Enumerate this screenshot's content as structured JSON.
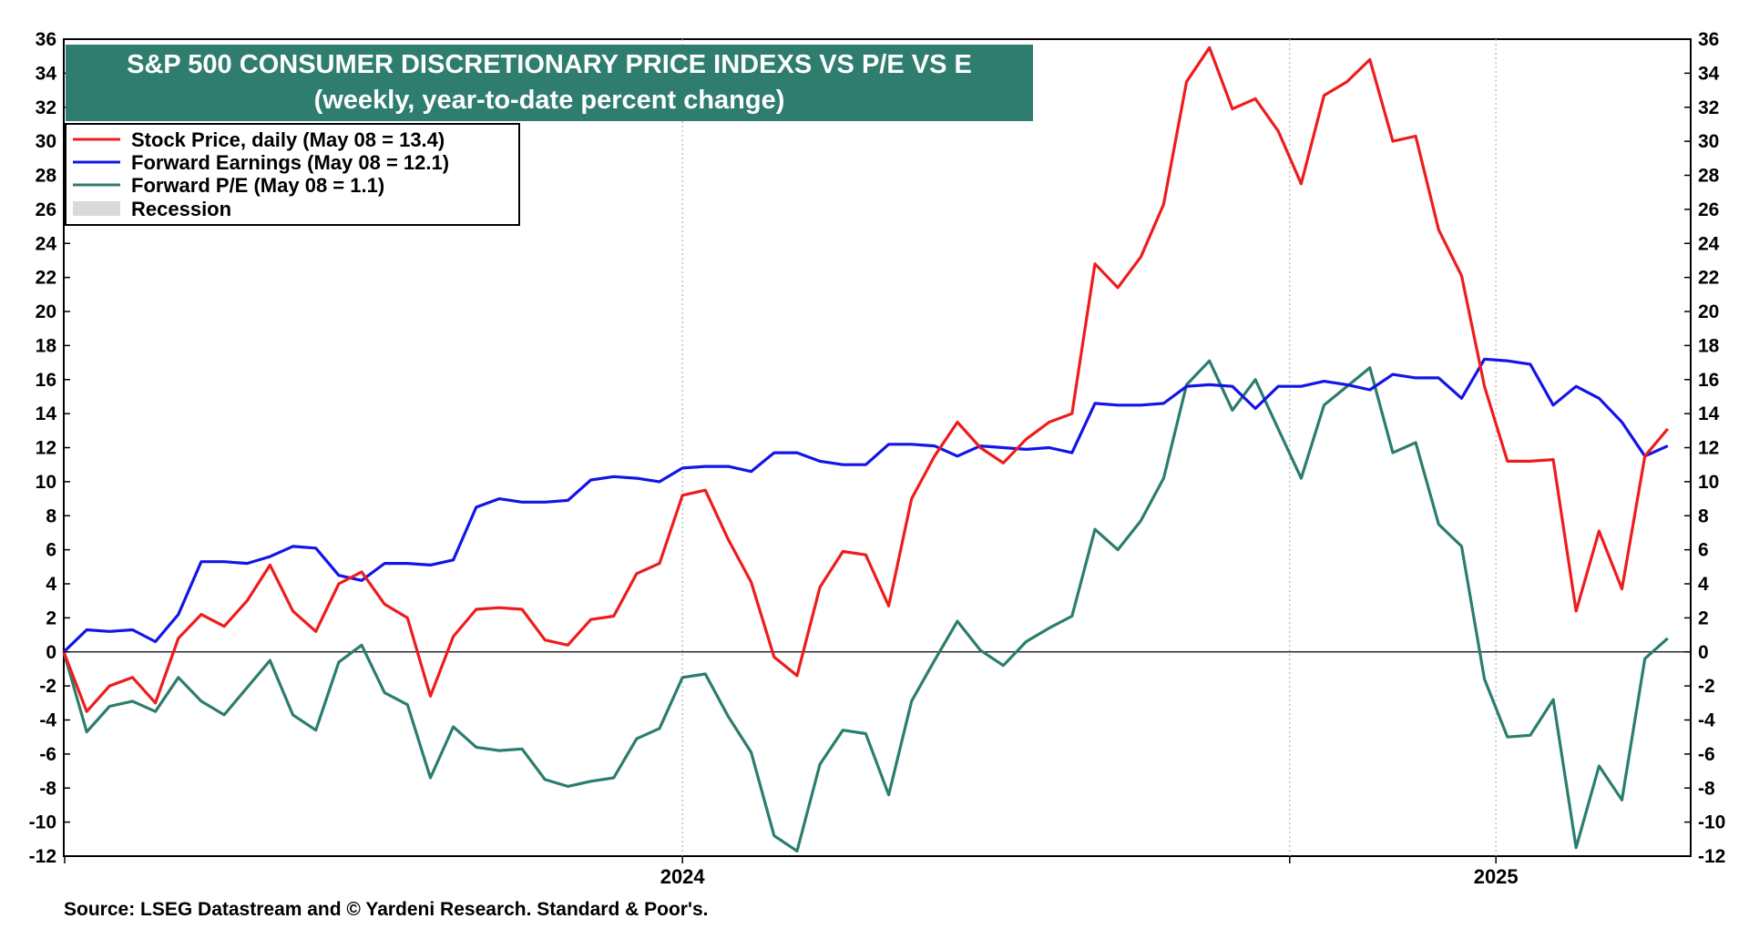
{
  "chart_data": {
    "type": "line",
    "title": "S&P 500 CONSUMER DISCRETIONARY PRICE INDEXS VS P/E VS E",
    "subtitle": "(weekly, year-to-date percent change)",
    "ylim": [
      -12,
      36
    ],
    "yticks": [
      -12,
      -10,
      -8,
      -6,
      -4,
      -2,
      0,
      2,
      4,
      6,
      8,
      10,
      12,
      14,
      16,
      18,
      20,
      22,
      24,
      26,
      28,
      30,
      32,
      34,
      36
    ],
    "xlim": [
      0,
      71
    ],
    "xticks": [
      {
        "label": "2024",
        "x": 27
      },
      {
        "label": "2025",
        "x": 62.5
      }
    ],
    "year_boundaries": [
      27,
      53.5,
      62.5
    ],
    "grid": "vertical-dotted",
    "legend_position": "top-left",
    "source": "Source: LSEG Datastream and © Yardeni Research. Standard & Poor's.",
    "legend": {
      "recession_label": "Recession"
    },
    "series": [
      {
        "name": "Stock Price, daily (May 08 = 13.4)",
        "color": "#ee1c1c",
        "values": [
          0,
          -3.5,
          -2,
          -1.5,
          -3,
          0.8,
          2.2,
          1.5,
          3,
          5.1,
          2.4,
          1.2,
          4,
          4.7,
          2.8,
          2,
          -2.6,
          0.9,
          2.5,
          2.6,
          2.5,
          0.7,
          0.4,
          1.9,
          2.1,
          4.6,
          5.2,
          9.2,
          9.5,
          6.6,
          4.1,
          -0.3,
          -1.4,
          3.8,
          5.9,
          5.7,
          2.7,
          9,
          11.5,
          13.5,
          12,
          11.1,
          12.5,
          13.5,
          14,
          22.8,
          21.4,
          23.2,
          26.3,
          33.5,
          35.5,
          31.9,
          32.5,
          30.6,
          27.5,
          32.7,
          33.5,
          34.8,
          30,
          30.3,
          24.8,
          22.1,
          15.6,
          11.2,
          11.2,
          11.3,
          2.4,
          7.1,
          3.7,
          11.5,
          13.1
        ]
      },
      {
        "name": "Forward Earnings (May 08 = 12.1)",
        "color": "#1414e6",
        "values": [
          0,
          1.3,
          1.2,
          1.3,
          0.6,
          2.2,
          5.3,
          5.3,
          5.2,
          5.6,
          6.2,
          6.1,
          4.5,
          4.2,
          5.2,
          5.2,
          5.1,
          5.4,
          8.5,
          9,
          8.8,
          8.8,
          8.9,
          10.1,
          10.3,
          10.2,
          10,
          10.8,
          10.9,
          10.9,
          10.6,
          11.7,
          11.7,
          11.2,
          11,
          11,
          12.2,
          12.2,
          12.1,
          11.5,
          12.1,
          12,
          11.9,
          12,
          11.7,
          14.6,
          14.5,
          14.5,
          14.6,
          15.6,
          15.7,
          15.6,
          14.3,
          15.6,
          15.6,
          15.9,
          15.7,
          15.4,
          16.3,
          16.1,
          16.1,
          14.9,
          17.2,
          17.1,
          16.9,
          14.5,
          15.6,
          14.9,
          13.5,
          11.5,
          12.1
        ]
      },
      {
        "name": "Forward P/E (May 08 = 1.1)",
        "color": "#2b7d6e",
        "values": [
          0,
          -4.7,
          -3.2,
          -2.9,
          -3.5,
          -1.5,
          -2.9,
          -3.7,
          -2.1,
          -0.5,
          -3.7,
          -4.6,
          -0.6,
          0.4,
          -2.4,
          -3.1,
          -7.4,
          -4.4,
          -5.6,
          -5.8,
          -5.7,
          -7.5,
          -7.9,
          -7.6,
          -7.4,
          -5.1,
          -4.5,
          -1.5,
          -1.3,
          -3.8,
          -5.9,
          -10.8,
          -11.7,
          -6.6,
          -4.6,
          -4.8,
          -8.4,
          -2.9,
          -0.5,
          1.8,
          0.1,
          -0.8,
          0.6,
          1.4,
          2.1,
          7.2,
          6,
          7.7,
          10.2,
          15.7,
          17.1,
          14.2,
          16,
          13.1,
          10.2,
          14.5,
          15.6,
          16.7,
          11.7,
          12.3,
          7.5,
          6.2,
          -1.6,
          -5,
          -4.9,
          -2.8,
          -11.5,
          -6.7,
          -8.7,
          -0.4,
          0.8
        ]
      }
    ]
  }
}
